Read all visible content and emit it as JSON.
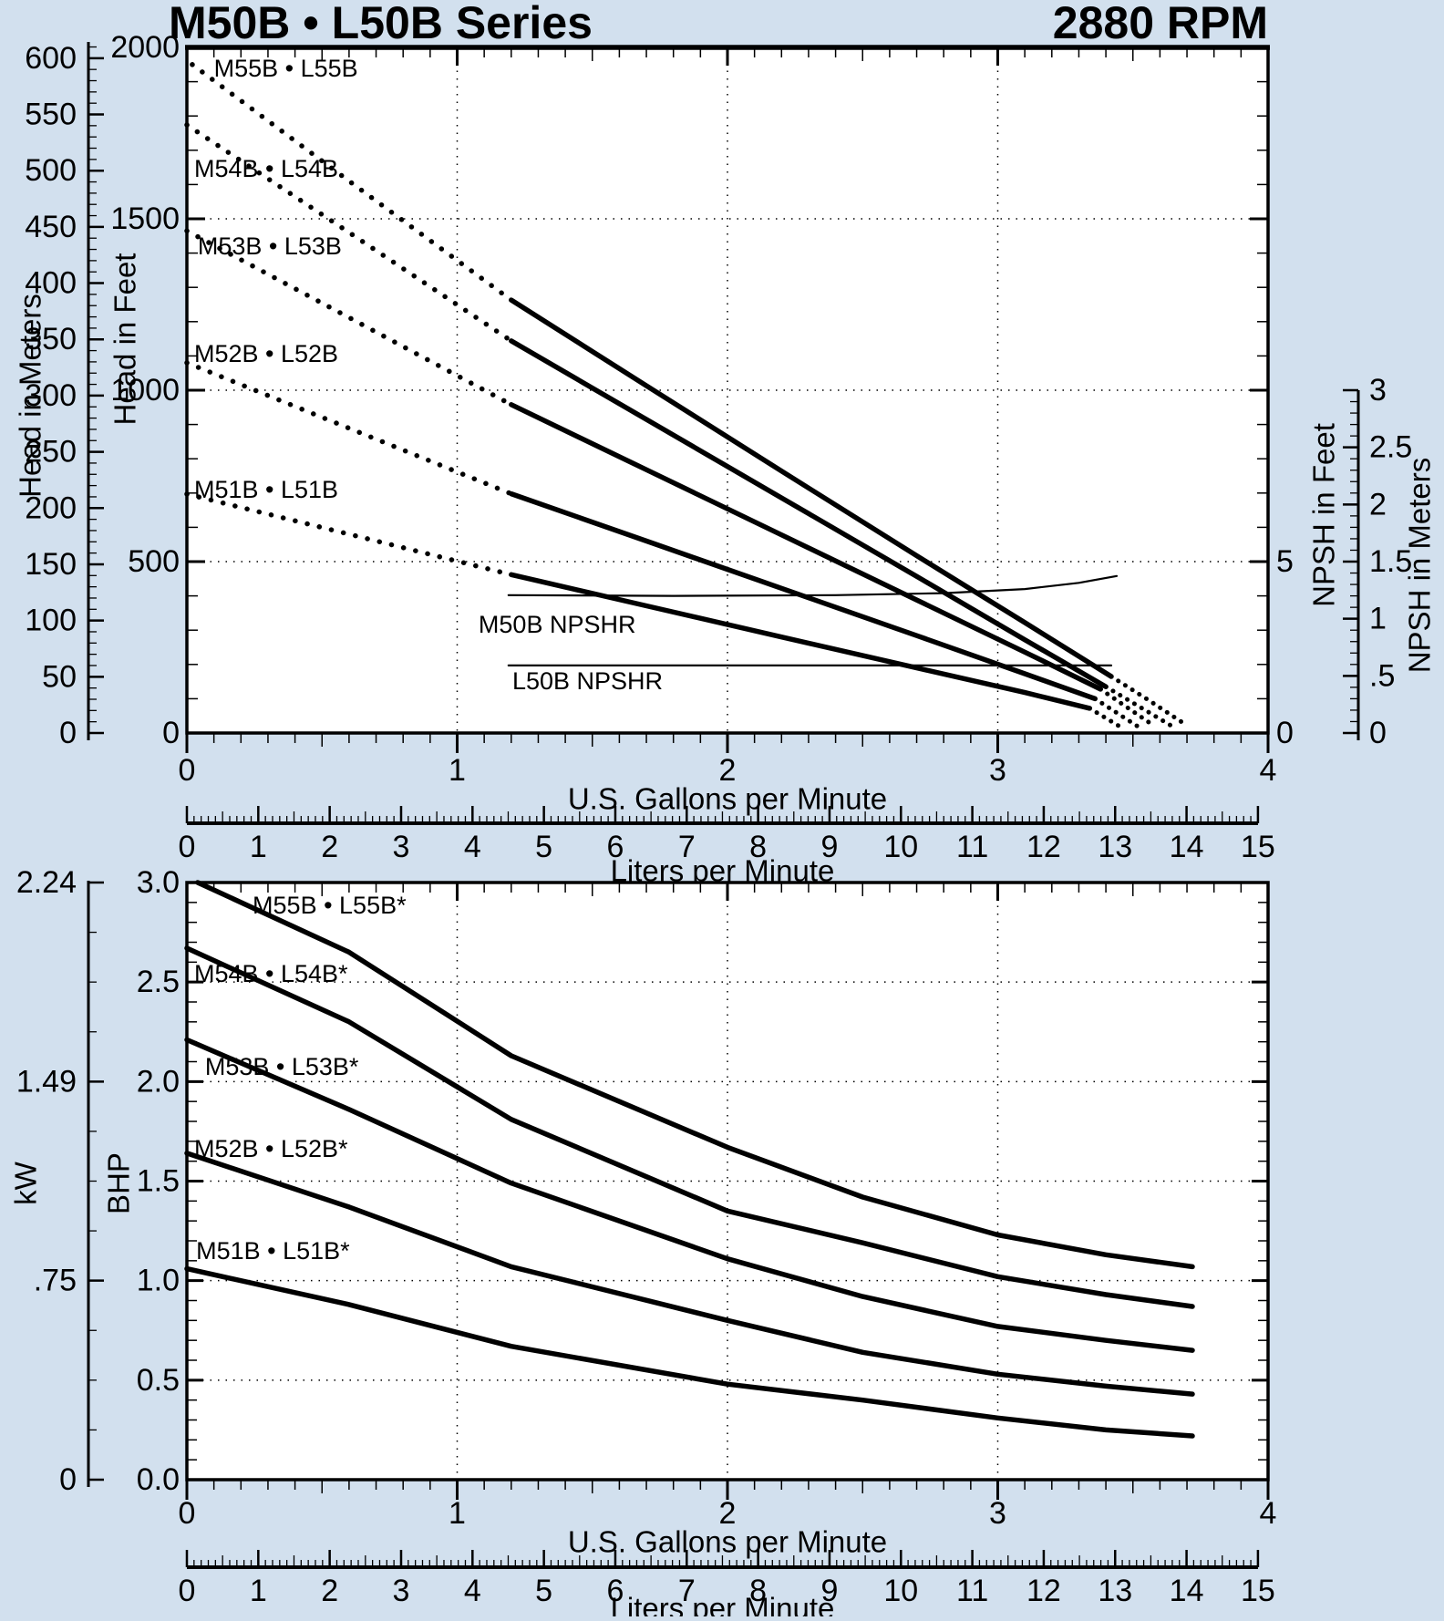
{
  "header": {
    "title": "M50B • L50B Series",
    "rpm": "2880 RPM"
  },
  "colors": {
    "background": "#d2e0ee",
    "plot_background": "#ffffff",
    "ink": "#000000"
  },
  "chart_data": [
    {
      "id": "head_npsh_chart",
      "type": "line",
      "x_axis": {
        "label": "U.S. Gallons per Minute",
        "range": [
          0,
          4
        ],
        "ticks": [
          {
            "v": 0,
            "t": "0"
          },
          {
            "v": 1,
            "t": "1"
          },
          {
            "v": 2,
            "t": "2"
          },
          {
            "v": 3,
            "t": "3"
          },
          {
            "v": 4,
            "t": "4"
          }
        ],
        "minor_step": 0.1,
        "grid_at": [
          1,
          2,
          3
        ]
      },
      "x2_axis": {
        "label": "Liters per Minute",
        "range": [
          0,
          15
        ],
        "ticks": [
          {
            "v": 0,
            "t": "0"
          },
          {
            "v": 1,
            "t": "1"
          },
          {
            "v": 2,
            "t": "2"
          },
          {
            "v": 3,
            "t": "3"
          },
          {
            "v": 4,
            "t": "4"
          },
          {
            "v": 5,
            "t": "5"
          },
          {
            "v": 6,
            "t": "6"
          },
          {
            "v": 7,
            "t": "7"
          },
          {
            "v": 8,
            "t": "8"
          },
          {
            "v": 9,
            "t": "9"
          },
          {
            "v": 10,
            "t": "10"
          },
          {
            "v": 11,
            "t": "11"
          },
          {
            "v": 12,
            "t": "12"
          },
          {
            "v": 13,
            "t": "13"
          },
          {
            "v": 14,
            "t": "14"
          },
          {
            "v": 15,
            "t": "15"
          }
        ],
        "minor_step": 0.1
      },
      "y_feet_axis": {
        "label": "Head in Feet",
        "range": [
          0,
          2000
        ],
        "ticks": [
          {
            "v": 0,
            "t": "0"
          },
          {
            "v": 500,
            "t": "500"
          },
          {
            "v": 1000,
            "t": "1000"
          },
          {
            "v": 1500,
            "t": "1500"
          },
          {
            "v": 2000,
            "t": "2000"
          }
        ],
        "minor_step": 100,
        "grid_at": [
          500,
          1000,
          1500
        ]
      },
      "y_meters_axis": {
        "label": "Head in Meters",
        "range": [
          0,
          610
        ],
        "ticks": [
          {
            "v": 0,
            "t": "0"
          },
          {
            "v": 50,
            "t": "50"
          },
          {
            "v": 100,
            "t": "100"
          },
          {
            "v": 150,
            "t": "150"
          },
          {
            "v": 200,
            "t": "200"
          },
          {
            "v": 250,
            "t": "250"
          },
          {
            "v": 300,
            "t": "300"
          },
          {
            "v": 350,
            "t": "350"
          },
          {
            "v": 400,
            "t": "400"
          },
          {
            "v": 450,
            "t": "450"
          },
          {
            "v": 500,
            "t": "500"
          },
          {
            "v": 550,
            "t": "550"
          },
          {
            "v": 600,
            "t": "600"
          }
        ],
        "minor_step": 10
      },
      "y_npsh_feet_axis": {
        "label": "NPSH in Feet",
        "range": [
          0,
          19
        ],
        "ticks": [
          {
            "v": 0,
            "t": "0"
          },
          {
            "v": 5,
            "t": "5"
          }
        ],
        "minor_step": 1,
        "major_step": 5
      },
      "y_npsh_meters_axis": {
        "label": "NPSH in Meters",
        "range": [
          0,
          3
        ],
        "ticks": [
          {
            "v": 0,
            "t": "0"
          },
          {
            "v": 0.5,
            "t": ".5"
          },
          {
            "v": 1,
            "t": "1"
          },
          {
            "v": 1.5,
            "t": "1.5"
          },
          {
            "v": 2,
            "t": "2"
          },
          {
            "v": 2.5,
            "t": "2.5"
          },
          {
            "v": 3,
            "t": "3"
          }
        ],
        "minor_step": 0.1
      },
      "series": [
        {
          "name": "M55B • L55B",
          "label_at": {
            "gpm": 0.1,
            "ft": 1939
          },
          "dotted": [
            [
              0.02,
              1950
            ],
            [
              0.6,
              1610
            ],
            [
              1.2,
              1263
            ]
          ],
          "solid": [
            [
              1.2,
              1263
            ],
            [
              1.7,
              1013
            ],
            [
              2.2,
              764
            ],
            [
              2.7,
              517
            ],
            [
              3.1,
              322
            ],
            [
              3.42,
              165
            ]
          ],
          "tail": [
            [
              3.42,
              165
            ],
            [
              3.56,
              95
            ],
            [
              3.7,
              22
            ]
          ]
        },
        {
          "name": "M54B • L54B",
          "label_at": {
            "gpm": 0.027,
            "ft": 1646
          },
          "dotted": [
            [
              0,
              1774
            ],
            [
              0.6,
              1460
            ],
            [
              1.2,
              1144
            ]
          ],
          "solid": [
            [
              1.2,
              1144
            ],
            [
              1.7,
              915
            ],
            [
              2.2,
              686
            ],
            [
              2.7,
              457
            ],
            [
              3.1,
              272
            ],
            [
              3.4,
              135
            ]
          ],
          "tail": [
            [
              3.4,
              135
            ],
            [
              3.64,
              22
            ]
          ]
        },
        {
          "name": "M53B • L53B",
          "label_at": {
            "gpm": 0.04,
            "ft": 1420
          },
          "dotted": [
            [
              0,
              1465
            ],
            [
              0.6,
              1212
            ],
            [
              1.2,
              958
            ]
          ],
          "solid": [
            [
              1.2,
              958
            ],
            [
              1.7,
              768
            ],
            [
              2.2,
              578
            ],
            [
              2.7,
              388
            ],
            [
              3.1,
              236
            ],
            [
              3.38,
              128
            ]
          ],
          "tail": [
            [
              3.38,
              128
            ],
            [
              3.58,
              20
            ]
          ]
        },
        {
          "name": "M52B • L52B",
          "label_at": {
            "gpm": 0.027,
            "ft": 1106
          },
          "dotted": [
            [
              0,
              1080
            ],
            [
              0.6,
              889
            ],
            [
              1.2,
              698
            ]
          ],
          "solid": [
            [
              1.2,
              698
            ],
            [
              1.7,
              560
            ],
            [
              2.2,
              422
            ],
            [
              2.7,
              284
            ],
            [
              3.1,
              173
            ],
            [
              3.36,
              100
            ]
          ],
          "tail": [
            [
              3.36,
              100
            ],
            [
              3.52,
              18
            ]
          ]
        },
        {
          "name": "M51B • L51B",
          "label_at": {
            "gpm": 0.027,
            "ft": 710
          },
          "dotted": [
            [
              0,
              697
            ],
            [
              0.6,
              580
            ],
            [
              1.2,
              462
            ]
          ],
          "solid": [
            [
              1.2,
              462
            ],
            [
              1.7,
              371
            ],
            [
              2.2,
              280
            ],
            [
              2.7,
              190
            ],
            [
              3.1,
              118
            ],
            [
              3.34,
              72
            ]
          ],
          "tail": [
            [
              3.34,
              72
            ],
            [
              3.46,
              15
            ]
          ]
        }
      ],
      "npshr_lines": [
        {
          "name": "M50B NPSHR",
          "label_at": {
            "gpm": 1.079,
            "npsh_ft": 3.16
          },
          "pts": [
            [
              1.19,
              4.02
            ],
            [
              1.8,
              4.0
            ],
            [
              2.4,
              4.02
            ],
            [
              2.8,
              4.08
            ],
            [
              3.1,
              4.2
            ],
            [
              3.3,
              4.38
            ],
            [
              3.44,
              4.58
            ]
          ]
        },
        {
          "name": "L50B NPSHR",
          "label_at": {
            "gpm": 1.204,
            "npsh_ft": 1.52
          },
          "pts": [
            [
              1.19,
              1.97
            ],
            [
              3.42,
              1.97
            ]
          ]
        }
      ]
    },
    {
      "id": "power_chart",
      "type": "line",
      "x_axis": {
        "label": "U.S. Gallons per Minute",
        "range": [
          0,
          4
        ],
        "ticks": [
          {
            "v": 0,
            "t": "0"
          },
          {
            "v": 1,
            "t": "1"
          },
          {
            "v": 2,
            "t": "2"
          },
          {
            "v": 3,
            "t": "3"
          },
          {
            "v": 4,
            "t": "4"
          }
        ],
        "minor_step": 0.1,
        "grid_at": [
          1,
          2,
          3
        ]
      },
      "x2_axis": {
        "label": "Liters per Minute",
        "range": [
          0,
          15
        ],
        "ticks": [
          {
            "v": 0,
            "t": "0"
          },
          {
            "v": 1,
            "t": "1"
          },
          {
            "v": 2,
            "t": "2"
          },
          {
            "v": 3,
            "t": "3"
          },
          {
            "v": 4,
            "t": "4"
          },
          {
            "v": 5,
            "t": "5"
          },
          {
            "v": 6,
            "t": "6"
          },
          {
            "v": 7,
            "t": "7"
          },
          {
            "v": 8,
            "t": "8"
          },
          {
            "v": 9,
            "t": "9"
          },
          {
            "v": 10,
            "t": "10"
          },
          {
            "v": 11,
            "t": "11"
          },
          {
            "v": 12,
            "t": "12"
          },
          {
            "v": 13,
            "t": "13"
          },
          {
            "v": 14,
            "t": "14"
          },
          {
            "v": 15,
            "t": "15"
          }
        ],
        "minor_step": 0.1
      },
      "y_bhp_axis": {
        "label": "BHP",
        "range": [
          0,
          3
        ],
        "ticks": [
          {
            "v": 0,
            "t": "0.0"
          },
          {
            "v": 0.5,
            "t": "0.5"
          },
          {
            "v": 1,
            "t": "1.0"
          },
          {
            "v": 1.5,
            "t": "1.5"
          },
          {
            "v": 2,
            "t": "2.0"
          },
          {
            "v": 2.5,
            "t": "2.5"
          },
          {
            "v": 3,
            "t": "3.0"
          }
        ],
        "minor_step": 0.1,
        "grid_at": [
          0.5,
          1,
          1.5,
          2,
          2.5
        ]
      },
      "y_kw_axis": {
        "label": "kW",
        "ticks": [
          {
            "bhp": 0,
            "t": "0"
          },
          {
            "bhp": 1,
            "t": ".75"
          },
          {
            "bhp": 2,
            "t": "1.49"
          },
          {
            "bhp": 3,
            "t": "2.24"
          }
        ],
        "minor_step_bhp": 0.25
      },
      "series": [
        {
          "name": "M55B • L55B*",
          "label_at": {
            "gpm": 0.243,
            "bhp": 2.885
          },
          "pts": [
            [
              0.04,
              3.0
            ],
            [
              0.6,
              2.65
            ],
            [
              1.2,
              2.13
            ],
            [
              2.0,
              1.67
            ],
            [
              2.5,
              1.42
            ],
            [
              3.0,
              1.23
            ],
            [
              3.4,
              1.13
            ],
            [
              3.72,
              1.07
            ]
          ]
        },
        {
          "name": "M54B • L54B*",
          "label_at": {
            "gpm": 0.027,
            "bhp": 2.542
          },
          "pts": [
            [
              0,
              2.67
            ],
            [
              0.6,
              2.3
            ],
            [
              1.2,
              1.81
            ],
            [
              2.0,
              1.35
            ],
            [
              2.5,
              1.19
            ],
            [
              3.0,
              1.02
            ],
            [
              3.4,
              0.93
            ],
            [
              3.72,
              0.87
            ]
          ]
        },
        {
          "name": "M53B • L53B*",
          "label_at": {
            "gpm": 0.067,
            "bhp": 2.075
          },
          "pts": [
            [
              0,
              2.21
            ],
            [
              0.6,
              1.86
            ],
            [
              1.2,
              1.49
            ],
            [
              2.0,
              1.11
            ],
            [
              2.5,
              0.92
            ],
            [
              3.0,
              0.77
            ],
            [
              3.4,
              0.7
            ],
            [
              3.72,
              0.65
            ]
          ]
        },
        {
          "name": "M52B • L52B*",
          "label_at": {
            "gpm": 0.027,
            "bhp": 1.663
          },
          "pts": [
            [
              0,
              1.64
            ],
            [
              0.6,
              1.37
            ],
            [
              1.2,
              1.07
            ],
            [
              2.0,
              0.8
            ],
            [
              2.5,
              0.64
            ],
            [
              3.0,
              0.53
            ],
            [
              3.4,
              0.47
            ],
            [
              3.72,
              0.43
            ]
          ]
        },
        {
          "name": "M51B • L51B*",
          "label_at": {
            "gpm": 0.034,
            "bhp": 1.15
          },
          "pts": [
            [
              0,
              1.06
            ],
            [
              0.6,
              0.88
            ],
            [
              1.2,
              0.67
            ],
            [
              2.0,
              0.48
            ],
            [
              2.5,
              0.4
            ],
            [
              3.0,
              0.31
            ],
            [
              3.4,
              0.25
            ],
            [
              3.72,
              0.22
            ]
          ]
        }
      ]
    }
  ]
}
